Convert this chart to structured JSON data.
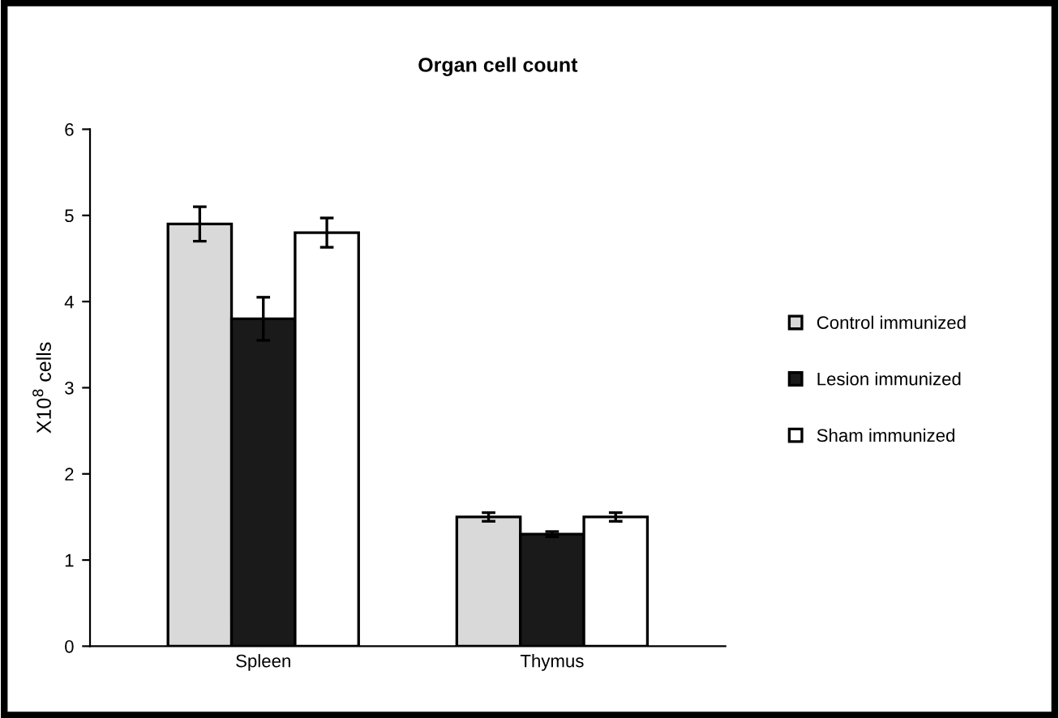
{
  "chart_data": {
    "type": "bar",
    "title": "Organ cell count",
    "ylabel": "X10$^{8}$ cells",
    "categories": [
      "Spleen",
      "Thymus"
    ],
    "series": [
      {
        "name": "Control immunized",
        "color": "#d9d9d9",
        "values": [
          4.9,
          1.5
        ],
        "errors": [
          0.2,
          0.05
        ]
      },
      {
        "name": "Lesion immunized",
        "color": "#1a1a1a",
        "values": [
          3.8,
          1.3
        ],
        "errors": [
          0.25,
          0.03
        ]
      },
      {
        "name": "Sham immunized",
        "color": "#ffffff",
        "values": [
          4.8,
          1.5
        ],
        "errors": [
          0.17,
          0.05
        ]
      }
    ],
    "ylim": [
      0,
      6
    ],
    "yticks": [
      0,
      1,
      2,
      3,
      4,
      5,
      6
    ],
    "grid": false,
    "legend": "right"
  }
}
